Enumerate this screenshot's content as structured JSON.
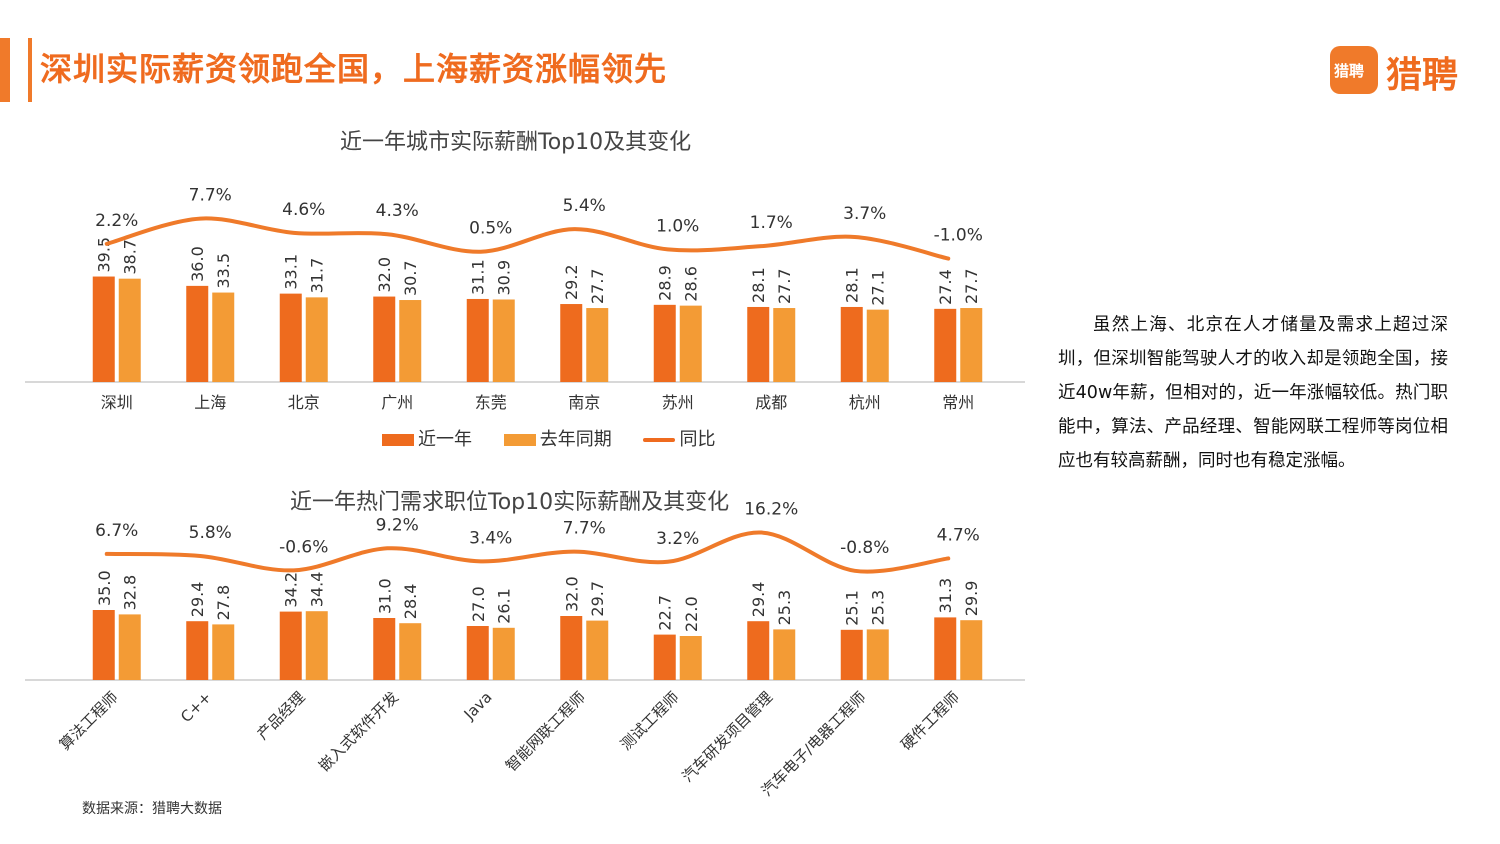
{
  "header": {
    "title": "深圳实际薪资领跑全国，上海薪资涨幅领先",
    "logo_box_text": "猎聘",
    "logo_text": "猎聘"
  },
  "colors": {
    "current": "#ee6b1e",
    "previous": "#f39b35",
    "yoy": "#ef7a2a"
  },
  "legend": {
    "current": "近一年",
    "previous": "去年同期",
    "yoy": "同比"
  },
  "side_text": "虽然上海、北京在人才储量及需求上超过深圳，但深圳智能驾驶人才的收入却是领跑全国，接近40w年薪，但相对的，近一年涨幅较低。热门职能中，算法、产品经理、智能网联工程师等岗位相应也有较高薪酬，同时也有稳定涨幅。",
  "source": "数据来源：猎聘大数据",
  "chart_data": [
    {
      "type": "bar",
      "title": "近一年城市实际薪酬Top10及其变化",
      "categories": [
        "深圳",
        "上海",
        "北京",
        "广州",
        "东莞",
        "南京",
        "苏州",
        "成都",
        "杭州",
        "常州"
      ],
      "series": [
        {
          "name": "近一年",
          "values": [
            39.5,
            36.0,
            33.1,
            32.0,
            31.1,
            29.2,
            28.9,
            28.1,
            28.1,
            27.4
          ]
        },
        {
          "name": "去年同期",
          "values": [
            38.7,
            33.5,
            31.7,
            30.7,
            30.9,
            27.7,
            28.6,
            27.7,
            27.1,
            27.7
          ]
        },
        {
          "name": "同比",
          "type": "line",
          "values": [
            2.2,
            7.7,
            4.6,
            4.3,
            0.5,
            5.4,
            1.0,
            1.7,
            3.7,
            -1.0
          ],
          "labels": [
            "2.2%",
            "7.7%",
            "4.6%",
            "4.3%",
            "0.5%",
            "5.4%",
            "1.0%",
            "1.7%",
            "3.7%",
            "-1.0%"
          ]
        }
      ],
      "value_labels_current": [
        "39.5",
        "36.0",
        "33.1",
        "32.0",
        "31.1",
        "29.2",
        "28.9",
        "28.1",
        "28.1",
        "27.4"
      ],
      "value_labels_previous": [
        "38.7",
        "33.5",
        "31.7",
        "30.7",
        "30.9",
        "27.7",
        "28.6",
        "27.7",
        "27.1",
        "27.7"
      ]
    },
    {
      "type": "bar",
      "title": "近一年热门需求职位Top10实际薪酬及其变化",
      "categories": [
        "算法工程师",
        "C++",
        "产品经理",
        "嵌入式软件开发",
        "Java",
        "智能网联工程师",
        "测试工程师",
        "汽车研发项目管理",
        "汽车电子/电器工程师",
        "硬件工程师"
      ],
      "series": [
        {
          "name": "近一年",
          "values": [
            35.0,
            29.4,
            34.2,
            31.0,
            27.0,
            32.0,
            22.7,
            29.4,
            25.1,
            31.3
          ]
        },
        {
          "name": "去年同期",
          "values": [
            32.8,
            27.8,
            34.4,
            28.4,
            26.1,
            29.7,
            22.0,
            25.3,
            25.3,
            29.9
          ]
        },
        {
          "name": "同比",
          "type": "line",
          "values": [
            6.7,
            5.8,
            -0.6,
            9.2,
            3.4,
            7.7,
            3.2,
            16.2,
            -0.8,
            4.7
          ],
          "labels": [
            "6.7%",
            "5.8%",
            "-0.6%",
            "9.2%",
            "3.4%",
            "7.7%",
            "3.2%",
            "16.2%",
            "-0.8%",
            "4.7%"
          ]
        }
      ],
      "value_labels_current": [
        "35.0",
        "29.4",
        "34.2",
        "31.0",
        "27.0",
        "32.0",
        "22.7",
        "29.4",
        "25.1",
        "31.3"
      ],
      "value_labels_previous": [
        "32.8",
        "27.8",
        "34.4",
        "28.4",
        "26.1",
        "29.7",
        "22.0",
        "25.3",
        "25.3",
        "29.9"
      ]
    }
  ]
}
